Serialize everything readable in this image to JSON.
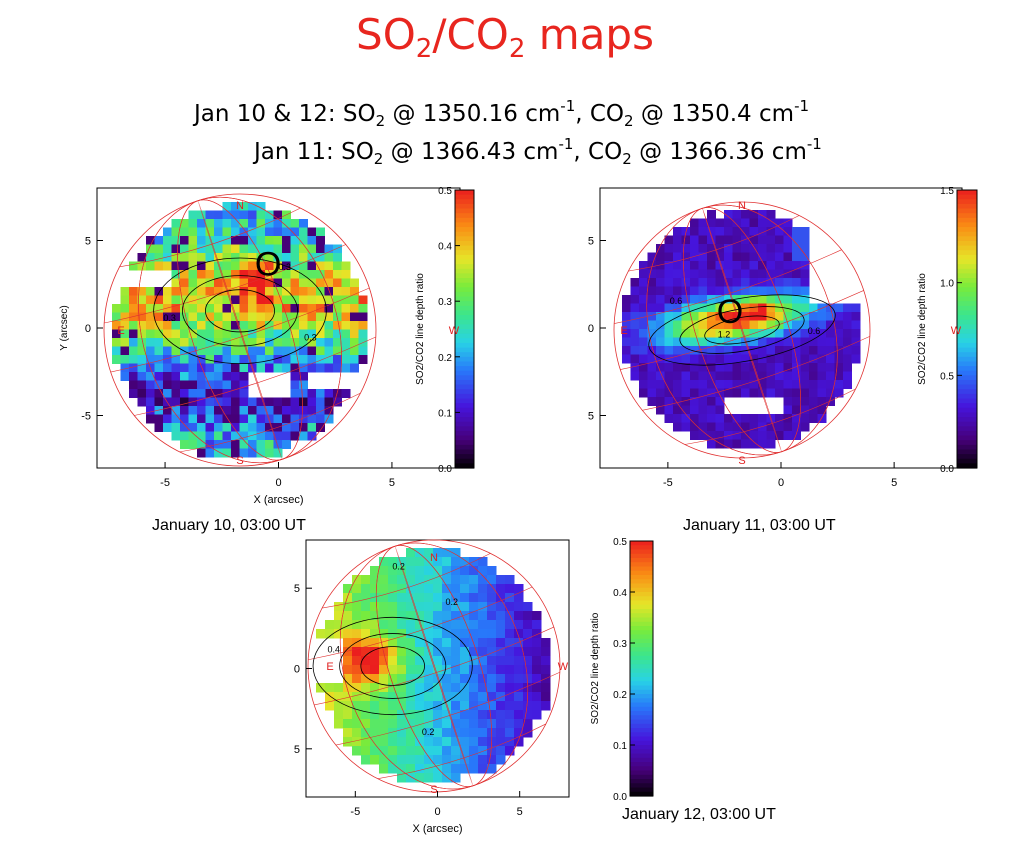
{
  "title": {
    "main": "SO",
    "sub1": "2",
    "slash": "/CO",
    "sub2": "2",
    "rest": " maps"
  },
  "subtitle": {
    "line1": {
      "lead": "Jan 10 & 12: SO",
      "s1": "2",
      "a": " @ 1350.16 cm",
      "p1": "-1",
      "b": ",   CO",
      "s2": "2",
      "c": " @ 1350.4 cm",
      "p2": "-1"
    },
    "line2": {
      "lead": "Jan 11: SO",
      "s1": "2",
      "a": " @ 1366.43 cm",
      "p1": "-1",
      "b": ",   CO",
      "s2": "2",
      "c": " @ 1366.36 cm",
      "p2": "-1"
    }
  },
  "chart_data": [
    {
      "type": "heatmap",
      "caption": "January 10, 03:00 UT",
      "xlabel": "X (arcsec)",
      "ylabel": "Y (arcsec)",
      "xticks": [
        "-5",
        "0",
        "5"
      ],
      "yticks": [
        "5",
        "0",
        "-5"
      ],
      "xlim": [
        -8,
        8
      ],
      "ylim": [
        -8,
        8
      ],
      "compass": {
        "n": "N",
        "s": "S",
        "e": "E",
        "w": "W"
      },
      "marker": "O",
      "contour_labels": [
        "0.3",
        "0.3",
        "0.3"
      ],
      "colorbar": {
        "label": "SO2/CO2 line depth ratio",
        "ticks": [
          "0.5",
          "0.4",
          "0.3",
          "0.2",
          "0.1",
          "0.0"
        ],
        "range": [
          0,
          0.5
        ]
      }
    },
    {
      "type": "heatmap",
      "caption": "January 11, 03:00 UT",
      "xlabel": "",
      "ylabel": "",
      "xticks": [
        "-5",
        "0",
        "5"
      ],
      "yticks": [
        "5",
        "0",
        "5"
      ],
      "xlim": [
        -8,
        8
      ],
      "ylim": [
        -8,
        8
      ],
      "compass": {
        "n": "N",
        "s": "S",
        "e": "E",
        "w": "W"
      },
      "marker": "O",
      "contour_labels": [
        "0.6",
        "1.2",
        "0.6"
      ],
      "colorbar": {
        "label": "SO2/CO2 line depth ratio",
        "ticks": [
          "1.5",
          "1.0",
          "0.5",
          "0.0"
        ],
        "range": [
          0,
          1.5
        ]
      }
    },
    {
      "type": "heatmap",
      "caption": "January 12, 03:00 UT",
      "xlabel": "X (arcsec)",
      "ylabel": "",
      "xticks": [
        "-5",
        "0",
        "5"
      ],
      "yticks": [
        "5",
        "0",
        "5"
      ],
      "xlim": [
        -8,
        8
      ],
      "ylim": [
        -8,
        8
      ],
      "compass": {
        "n": "N",
        "s": "S",
        "e": "E",
        "w": "W"
      },
      "marker": "",
      "contour_labels": [
        "0.2",
        "0.4",
        "0.2",
        "0.2"
      ],
      "colorbar": {
        "label": "SO2/CO2 line depth ratio",
        "ticks": [
          "0.5",
          "0.4",
          "0.3",
          "0.2",
          "0.1",
          "0.0"
        ],
        "range": [
          0,
          0.5
        ]
      }
    }
  ],
  "colors": {
    "title": "#e8261f",
    "compass": "#e02020",
    "grid": "#e03030"
  }
}
